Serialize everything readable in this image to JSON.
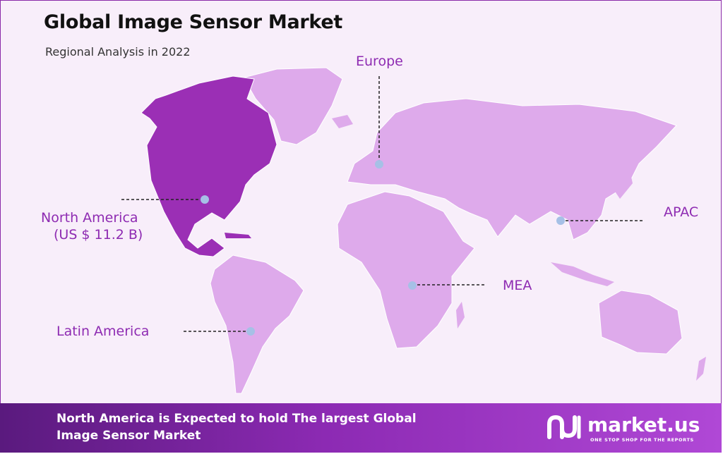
{
  "header": {
    "title": "Global Image Sensor Market",
    "subtitle": "Regional Analysis in 2022"
  },
  "regions": [
    {
      "id": "north-america",
      "label": "North America",
      "value": "(US $ 11.2 B)",
      "highlighted": true
    },
    {
      "id": "europe",
      "label": "Europe",
      "value": "",
      "highlighted": false
    },
    {
      "id": "apac",
      "label": "APAC",
      "value": "",
      "highlighted": false
    },
    {
      "id": "mea",
      "label": "MEA",
      "value": "",
      "highlighted": false
    },
    {
      "id": "latin-america",
      "label": "Latin America",
      "value": "",
      "highlighted": false
    }
  ],
  "footer": {
    "text_line1": "North America is Expected to hold The largest Global",
    "text_line2": "Image Sensor  Market"
  },
  "brand": {
    "name": "market.us",
    "tagline": "ONE STOP SHOP FOR THE REPORTS"
  },
  "colors": {
    "highlight": "#9b2fb5",
    "land": "#deaaeb",
    "accent_text": "#8e2bb2",
    "marker": "#a6c0e6"
  }
}
